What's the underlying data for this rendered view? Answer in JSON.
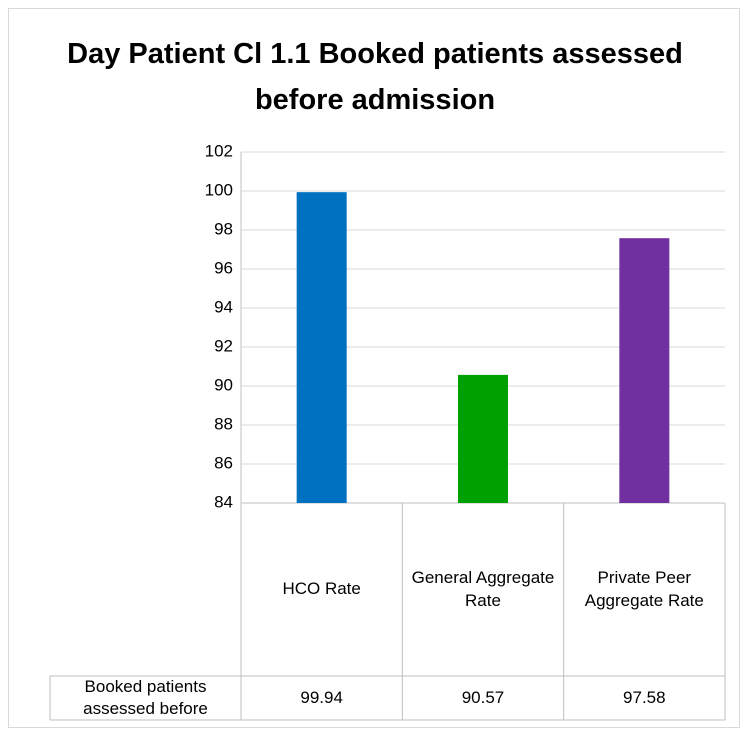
{
  "chart_data": {
    "type": "bar",
    "title": "Day Patient Cl 1.1 Booked patients assessed before admission",
    "categories": [
      "HCO Rate",
      "General Aggregate Rate",
      "Private Peer Aggregate Rate"
    ],
    "series": [
      {
        "name": "Day Patient Cl 1.1: Booked patients assessed before admission",
        "colors": [
          "#0070c0",
          "#00a000",
          "#7030a0"
        ],
        "values": [
          99.94,
          90.57,
          97.58
        ]
      }
    ],
    "ylim": [
      84,
      102
    ],
    "yticks": [
      84,
      86,
      88,
      90,
      92,
      94,
      96,
      98,
      100,
      102
    ],
    "grid": true,
    "data_table": true
  }
}
